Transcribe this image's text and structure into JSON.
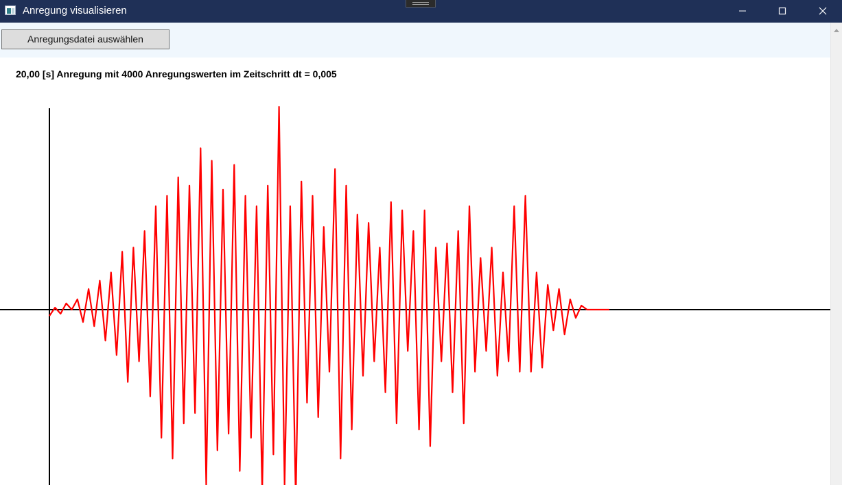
{
  "window": {
    "title": "Anregung visualisieren",
    "icon": "app-window-icon",
    "controls": [
      "minimize-icon",
      "maximize-icon",
      "close-icon"
    ]
  },
  "toolbar": {
    "select_button_label": "Anregungsdatei auswählen"
  },
  "info": {
    "text": "20,00 [s] Anregung  mit 4000 Anregungswerten im Zeitschritt dt = 0,005"
  },
  "colors": {
    "titlebar": "#1f3057",
    "toolbar": "#f0f7fd",
    "signal": "#ff0000",
    "axes": "#000000"
  },
  "chart_data": {
    "type": "line",
    "title": "",
    "xlabel": "",
    "ylabel": "",
    "duration_s": 20.0,
    "sample_count": 4000,
    "dt": 0.005,
    "grid": false,
    "legend": "none",
    "xlim": [
      0,
      20
    ],
    "ylim": [
      -1.0,
      1.0
    ],
    "series": [
      {
        "x": [
          0.0,
          0.2,
          0.4,
          0.6,
          0.8,
          1.0,
          1.2,
          1.4,
          1.6,
          1.8,
          2.0,
          2.2,
          2.4,
          2.6,
          2.8,
          3.0,
          3.2,
          3.4,
          3.6,
          3.8,
          4.0,
          4.2,
          4.4,
          4.6,
          4.8,
          5.0,
          5.2,
          5.4,
          5.6,
          5.8,
          6.0,
          6.2,
          6.4,
          6.6,
          6.8,
          7.0,
          7.2,
          7.4,
          7.6,
          7.8,
          8.0,
          8.2,
          8.4,
          8.6,
          8.8,
          9.0,
          9.2,
          9.4,
          9.6,
          9.8,
          10.0,
          10.2,
          10.4,
          10.6,
          10.8,
          11.0,
          11.2,
          11.4,
          11.6,
          11.8,
          12.0,
          12.2,
          12.4,
          12.6,
          12.8,
          13.0,
          13.2,
          13.4,
          13.6,
          13.8,
          14.0,
          14.2,
          14.4,
          14.6,
          14.8,
          15.0,
          15.2,
          15.4,
          15.6,
          15.8,
          16.0,
          16.2,
          16.4,
          16.6,
          16.8,
          17.0,
          17.2,
          17.4,
          17.6,
          17.8,
          18.0,
          18.2,
          18.4,
          18.6,
          18.8,
          19.0,
          19.2,
          19.4,
          19.6,
          19.8,
          20.0
        ],
        "values": [
          -0.03,
          0.01,
          -0.02,
          0.03,
          0.0,
          0.05,
          -0.06,
          0.1,
          -0.08,
          0.14,
          -0.15,
          0.18,
          -0.22,
          0.28,
          -0.35,
          0.3,
          -0.25,
          0.38,
          -0.42,
          0.5,
          -0.62,
          0.55,
          -0.72,
          0.64,
          -0.55,
          0.6,
          -0.5,
          0.78,
          -0.85,
          0.72,
          -0.68,
          0.58,
          -0.6,
          0.7,
          -0.78,
          0.55,
          -0.62,
          0.5,
          -0.88,
          0.6,
          -0.7,
          0.98,
          -0.85,
          0.5,
          -0.92,
          0.62,
          -0.45,
          0.55,
          -0.52,
          0.4,
          -0.3,
          0.68,
          -0.72,
          0.6,
          -0.58,
          0.46,
          -0.32,
          0.42,
          -0.25,
          0.3,
          -0.4,
          0.52,
          -0.55,
          0.48,
          -0.2,
          0.38,
          -0.58,
          0.48,
          -0.66,
          0.3,
          -0.25,
          0.32,
          -0.4,
          0.38,
          -0.55,
          0.5,
          -0.3,
          0.25,
          -0.2,
          0.3,
          -0.32,
          0.18,
          -0.25,
          0.5,
          -0.3,
          0.55,
          -0.3,
          0.18,
          -0.28,
          0.12,
          -0.1,
          0.1,
          -0.12,
          0.05,
          -0.04,
          0.02,
          0.0,
          0.0,
          0.0,
          0.0,
          0.0
        ]
      }
    ]
  }
}
